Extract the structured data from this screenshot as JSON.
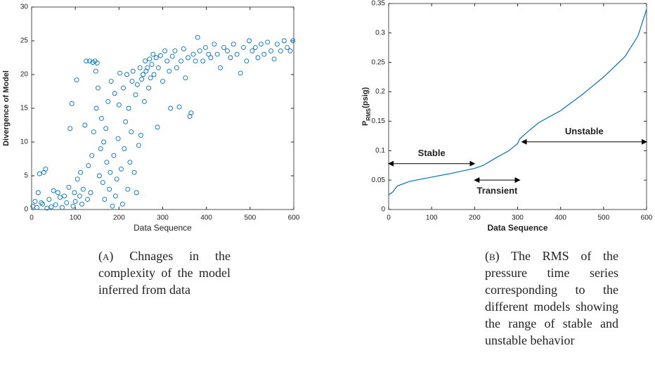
{
  "chart_data": [
    {
      "type": "scatter",
      "caption_tag": "(a)",
      "caption": "Chnages in the complexity of the model inferred from data",
      "xlabel": "Data Sequence",
      "ylabel": "Divergence of Model",
      "color": "#0072bd",
      "xlim": [
        0,
        600
      ],
      "xticks": [
        0,
        100,
        200,
        300,
        400,
        500,
        600
      ],
      "ylim": [
        0,
        30
      ],
      "yticks": [
        0,
        5,
        10,
        15,
        20,
        25,
        30
      ],
      "x": [
        3,
        8,
        12,
        15,
        18,
        22,
        25,
        28,
        32,
        35,
        40,
        45,
        50,
        55,
        60,
        65,
        70,
        75,
        80,
        85,
        88,
        92,
        95,
        98,
        100,
        103,
        105,
        110,
        112,
        115,
        118,
        122,
        125,
        128,
        130,
        133,
        135,
        138,
        140,
        142,
        145,
        147,
        148,
        150,
        152,
        155,
        158,
        160,
        163,
        165,
        167,
        170,
        172,
        175,
        178,
        180,
        182,
        185,
        188,
        190,
        192,
        195,
        198,
        200,
        202,
        205,
        208,
        210,
        212,
        215,
        218,
        220,
        222,
        225,
        228,
        230,
        232,
        235,
        238,
        240,
        242,
        245,
        248,
        250,
        252,
        255,
        258,
        260,
        262,
        265,
        268,
        270,
        272,
        275,
        278,
        280,
        285,
        288,
        290,
        295,
        300,
        305,
        310,
        315,
        318,
        322,
        328,
        332,
        338,
        342,
        348,
        352,
        358,
        362,
        365,
        370,
        375,
        380,
        385,
        392,
        398,
        405,
        410,
        418,
        425,
        432,
        440,
        448,
        455,
        462,
        470,
        478,
        485,
        492,
        498,
        505,
        512,
        518,
        525,
        532,
        540,
        548,
        555,
        562,
        570,
        578,
        585,
        592,
        598
      ],
      "values": [
        0.5,
        1.2,
        0.3,
        2.5,
        5.3,
        1,
        0.8,
        5.5,
        6,
        0.2,
        1.5,
        0.4,
        2.8,
        0.7,
        2.5,
        1.8,
        0.3,
        2,
        1,
        3.3,
        12,
        15.7,
        0.5,
        2.5,
        1.2,
        19.2,
        4.5,
        2,
        5.5,
        0.8,
        3,
        12.5,
        22,
        1.5,
        6.5,
        22,
        2.5,
        8,
        21.8,
        11.5,
        22,
        20.5,
        15,
        21.7,
        18,
        5,
        9,
        13.5,
        4,
        10,
        1.5,
        12,
        7,
        16,
        3,
        5.5,
        19,
        0.5,
        8,
        17.2,
        2,
        4.5,
        10.5,
        15.5,
        20.2,
        6,
        0.8,
        18,
        9,
        13,
        20,
        3,
        15,
        7,
        11.5,
        19,
        20.5,
        5.5,
        17,
        2.5,
        18.5,
        9.5,
        21,
        11,
        19.3,
        20,
        16,
        22,
        20.5,
        21,
        18,
        22.3,
        19.5,
        21.5,
        23,
        20,
        22.5,
        12.2,
        21,
        22.8,
        19,
        23.5,
        22,
        20.5,
        15,
        22.7,
        23.5,
        21,
        15.2,
        22,
        23.8,
        19.5,
        22.5,
        13.8,
        14.3,
        23,
        22,
        25.5,
        23.5,
        22,
        24,
        23,
        22.5,
        24.5,
        23,
        21,
        24,
        23.5,
        22.5,
        24.5,
        23,
        20.2,
        24,
        22,
        25,
        23.5,
        24,
        22.5,
        24.5,
        23,
        24.8,
        23.5,
        22.3,
        24.5,
        23.5,
        25,
        24,
        23.5,
        25
      ]
    },
    {
      "type": "line",
      "caption_tag": "(b)",
      "caption": "The RMS of the pressure time series corresponding to the different models showing the range of stable and unstable behavior",
      "xlabel": "Data Sequence",
      "ylabel": [
        "P",
        "RMS",
        "(psig)"
      ],
      "color": "#0072bd",
      "xlim": [
        0,
        600
      ],
      "xticks": [
        0,
        100,
        200,
        300,
        400,
        500,
        600
      ],
      "ylim": [
        0,
        0.35
      ],
      "yticks": [
        0,
        0.05,
        0.1,
        0.15,
        0.2,
        0.25,
        0.3,
        0.35
      ],
      "x": [
        0,
        10,
        20,
        50,
        100,
        150,
        200,
        220,
        250,
        280,
        300,
        305,
        320,
        350,
        400,
        450,
        500,
        550,
        580,
        600
      ],
      "values": [
        0.025,
        0.03,
        0.04,
        0.048,
        0.055,
        0.062,
        0.07,
        0.075,
        0.088,
        0.1,
        0.112,
        0.12,
        0.13,
        0.148,
        0.168,
        0.195,
        0.225,
        0.26,
        0.295,
        0.34
      ],
      "annotations": [
        {
          "text": "Stable",
          "x": [
            0,
            200
          ],
          "y": 0.078,
          "side": "above"
        },
        {
          "text": "Transient",
          "x": [
            200,
            305
          ],
          "y": 0.05,
          "side": "below"
        },
        {
          "text": "Unstable",
          "x": [
            310,
            600
          ],
          "y": 0.115,
          "side": "above"
        }
      ]
    }
  ]
}
